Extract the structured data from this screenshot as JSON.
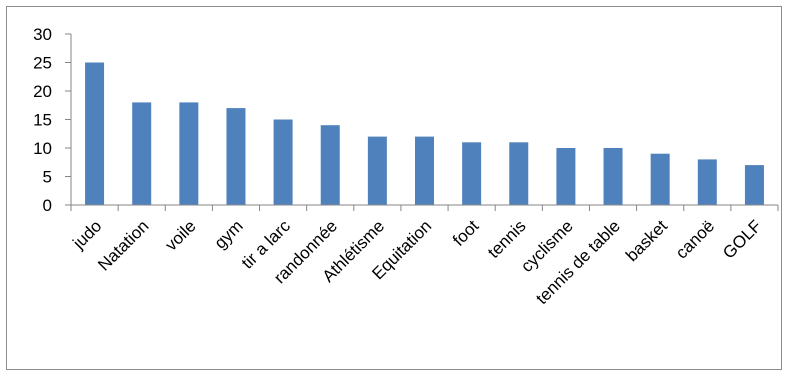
{
  "chart_data": {
    "type": "bar",
    "title": "",
    "xlabel": "",
    "ylabel": "",
    "categories": [
      "judo",
      "Natation",
      "voile",
      "gym",
      "tir a larc",
      "randonnée",
      "Athlétisme",
      "Equitation",
      "foot",
      "tennis",
      "cyclisme",
      "tennis de table",
      "basket",
      "canoë",
      "GOLF"
    ],
    "values": [
      25,
      18,
      18,
      17,
      15,
      14,
      12,
      12,
      11,
      11,
      10,
      10,
      9,
      8,
      7
    ],
    "ylim": [
      0,
      30
    ],
    "yticks": [
      "0",
      "5",
      "10",
      "15",
      "20",
      "25",
      "30"
    ],
    "grid": false,
    "legend": "none",
    "bar_color": "#4f81bd",
    "axis_color": "#868686"
  }
}
